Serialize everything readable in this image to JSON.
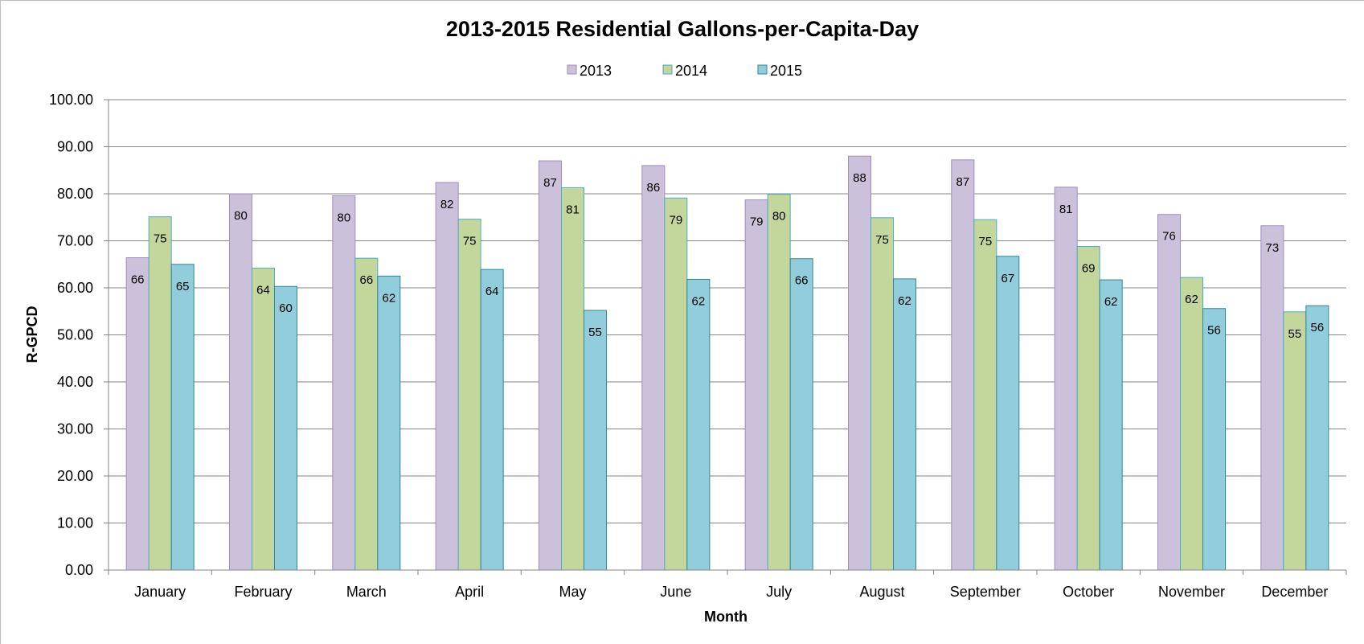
{
  "chart_data": {
    "type": "bar",
    "title": "2013-2015 Residential Gallons-per-Capita-Day",
    "xlabel": "Month",
    "ylabel": "R-GPCD",
    "ylim": [
      0,
      100
    ],
    "yticks": [
      "0.00",
      "10.00",
      "20.00",
      "30.00",
      "40.00",
      "50.00",
      "60.00",
      "70.00",
      "80.00",
      "90.00",
      "100.00"
    ],
    "grid": "horizontal",
    "legend_position": "top-center",
    "categories": [
      "January",
      "February",
      "March",
      "April",
      "May",
      "June",
      "July",
      "August",
      "September",
      "October",
      "November",
      "December"
    ],
    "series": [
      {
        "name": "2013",
        "fill": "#ccc1da",
        "stroke": "#9f8cc0",
        "values": [
          66.4,
          80.0,
          79.6,
          82.4,
          87.0,
          86.0,
          78.7,
          88.0,
          87.2,
          81.4,
          75.6,
          73.2
        ],
        "labels": [
          "66",
          "80",
          "80",
          "82",
          "87",
          "86",
          "79",
          "88",
          "87",
          "81",
          "76",
          "73"
        ]
      },
      {
        "name": "2014",
        "fill": "#c3d69b",
        "stroke": "#4bacc6",
        "values": [
          75.1,
          64.2,
          66.3,
          74.6,
          81.3,
          79.1,
          79.9,
          74.9,
          74.5,
          68.8,
          62.2,
          54.9
        ],
        "labels": [
          "75",
          "64",
          "66",
          "75",
          "81",
          "79",
          "80",
          "75",
          "75",
          "69",
          "62",
          "55"
        ]
      },
      {
        "name": "2015",
        "fill": "#92cddc",
        "stroke": "#31859c",
        "values": [
          65.0,
          60.3,
          62.5,
          63.9,
          55.2,
          61.8,
          66.2,
          61.9,
          66.7,
          61.7,
          55.6,
          56.2
        ],
        "labels": [
          "65",
          "60",
          "62",
          "64",
          "55",
          "62",
          "66",
          "62",
          "67",
          "62",
          "56",
          "56"
        ]
      }
    ]
  }
}
